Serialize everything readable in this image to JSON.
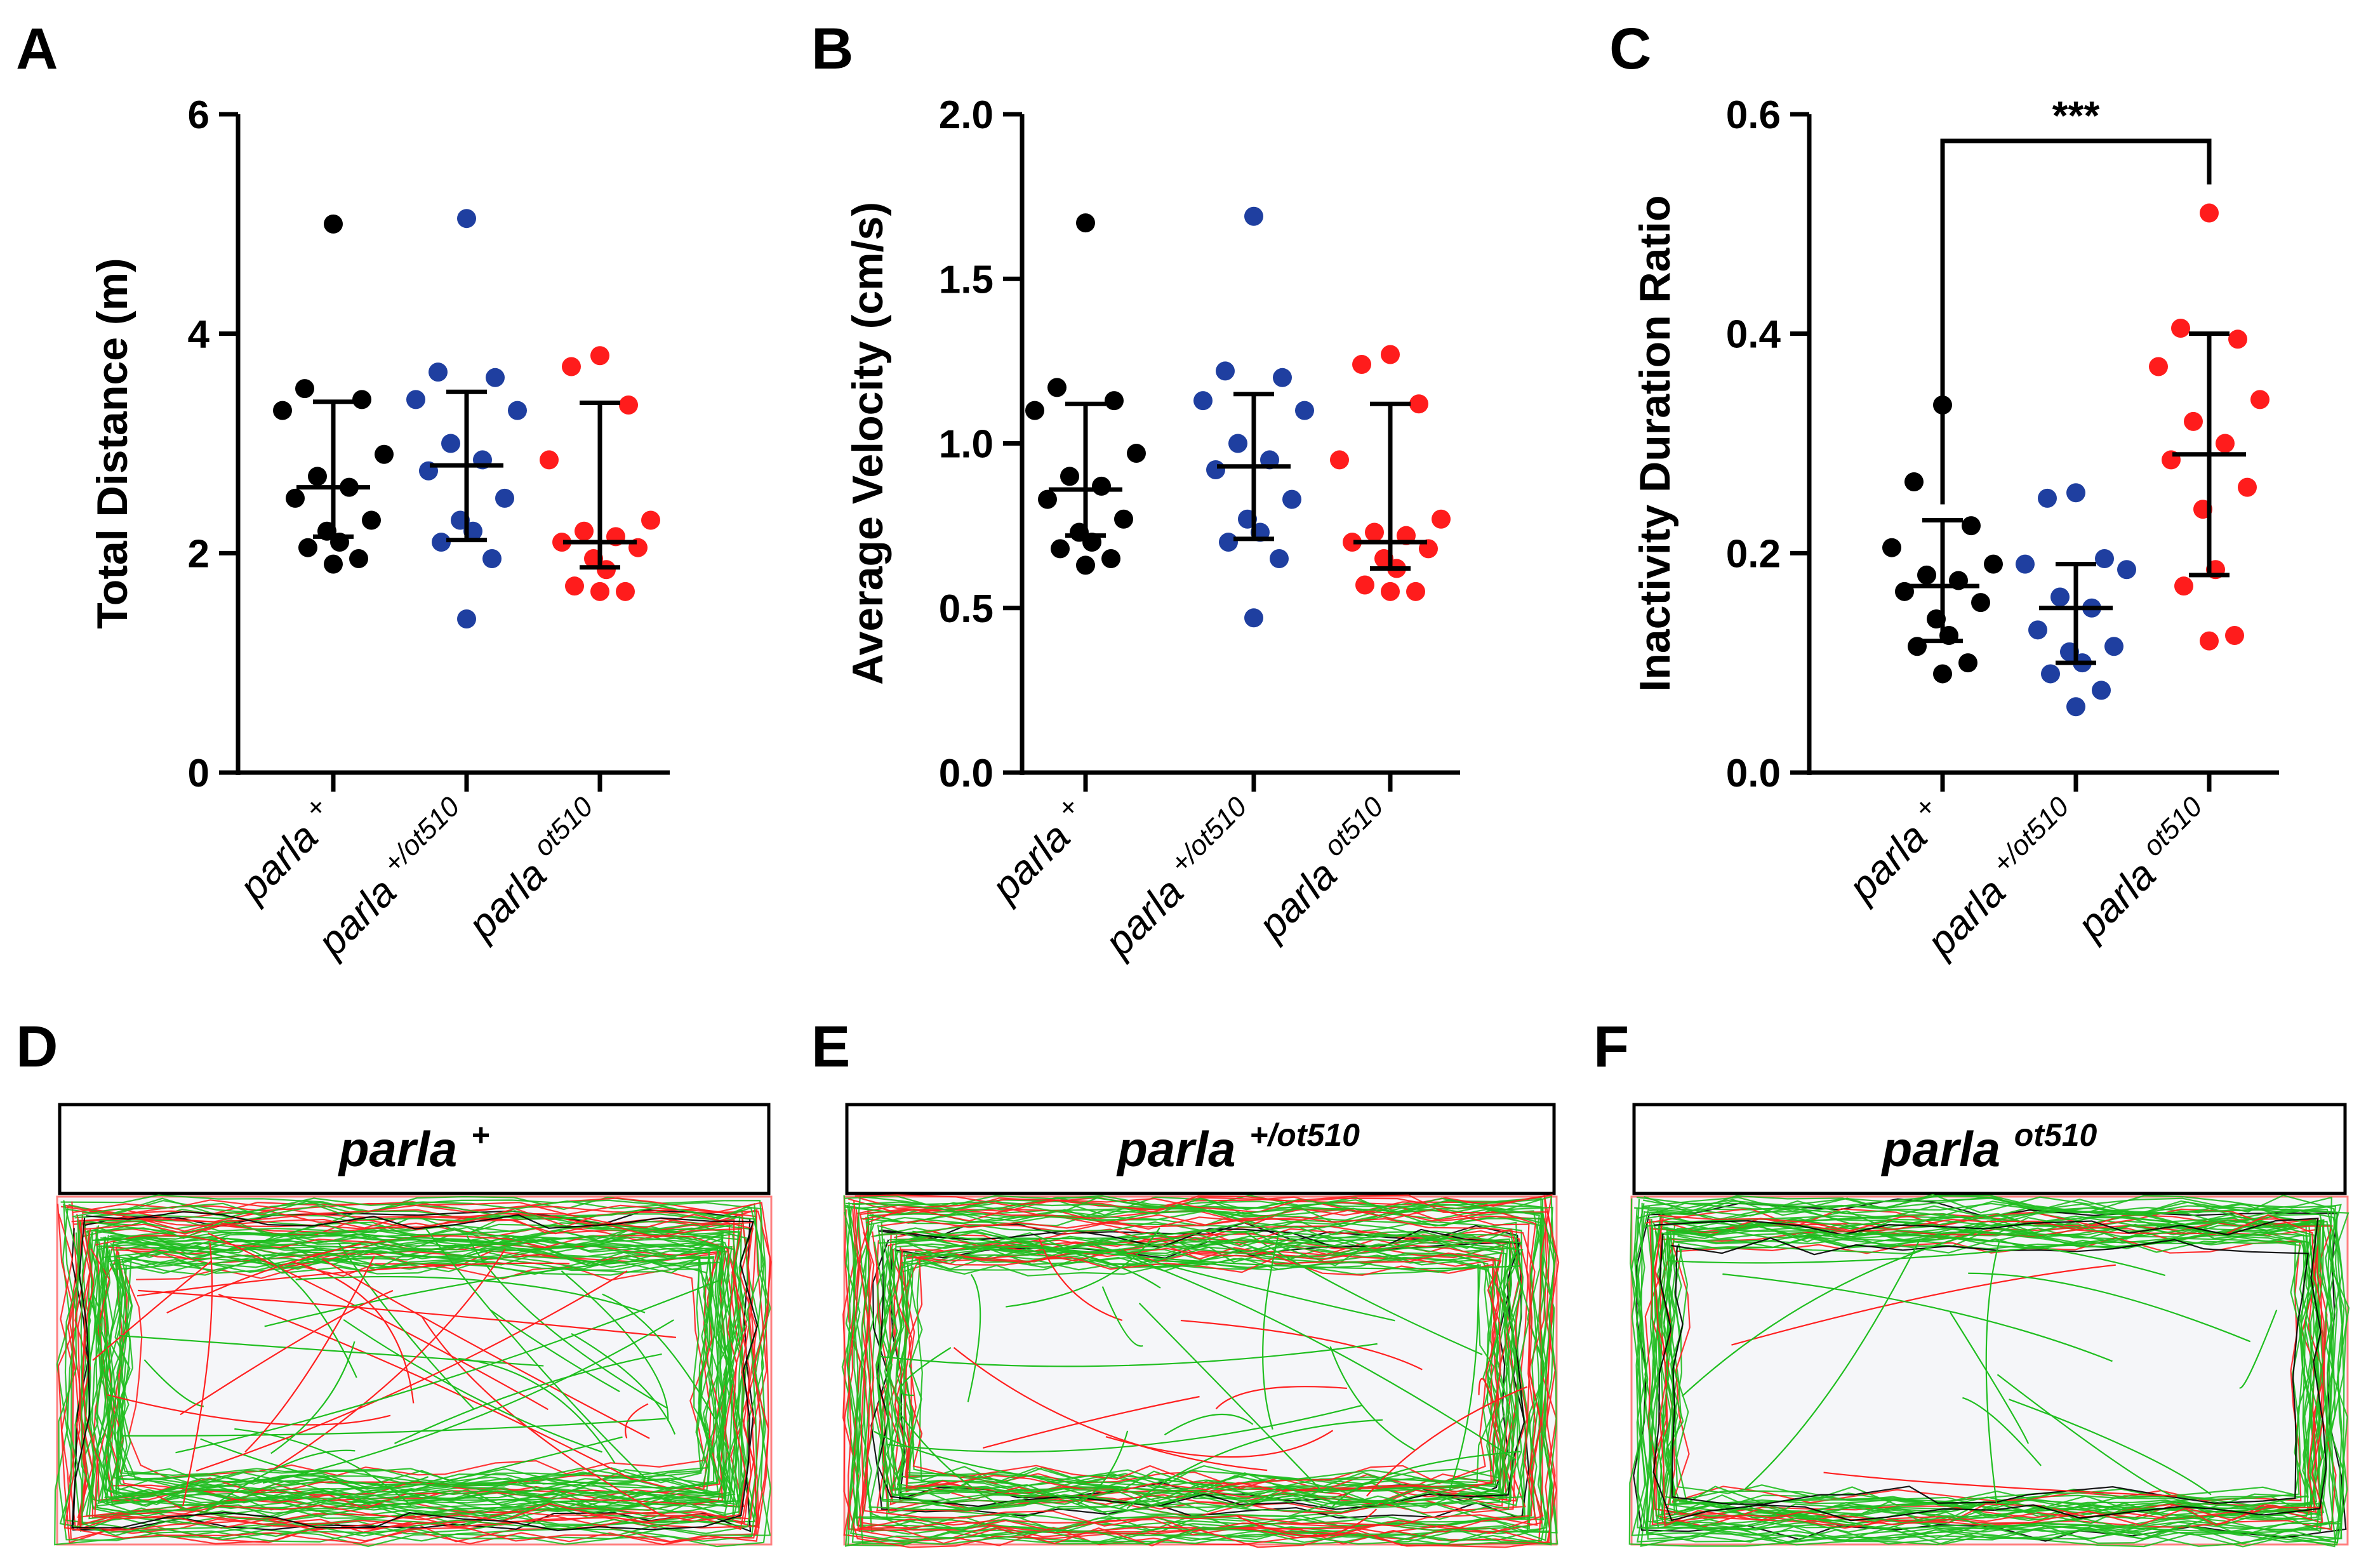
{
  "panel_letters": {
    "a": "A",
    "b": "B",
    "c": "C",
    "d": "D",
    "e": "E",
    "f": "F"
  },
  "chart_data": [
    {
      "type": "scatter",
      "panel": "A",
      "ylabel": "Total Distance (m)",
      "ylim": [
        0,
        6
      ],
      "yticks": [
        0,
        2,
        4,
        6
      ],
      "categories": [
        {
          "base": "parla",
          "sup": "+"
        },
        {
          "base": "parla",
          "sup": "+/ot510"
        },
        {
          "base": "parla",
          "sup": "ot510"
        }
      ],
      "series": [
        {
          "name": "parla +",
          "color": "#000000",
          "median": 2.6,
          "q1": 2.15,
          "q3": 3.38,
          "values": [
            5.0,
            3.5,
            3.4,
            3.3,
            2.9,
            2.7,
            2.6,
            2.5,
            2.3,
            2.2,
            2.1,
            2.05,
            1.95,
            1.9
          ]
        },
        {
          "name": "parla +/ot510",
          "color": "#1f3fa0",
          "median": 2.8,
          "q1": 2.12,
          "q3": 3.47,
          "values": [
            5.05,
            3.65,
            3.6,
            3.4,
            3.3,
            3.0,
            2.85,
            2.75,
            2.5,
            2.3,
            2.2,
            2.1,
            1.95,
            1.4
          ]
        },
        {
          "name": "parla ot510",
          "color": "#ff1c1c",
          "median": 2.1,
          "q1": 1.87,
          "q3": 3.37,
          "values": [
            3.8,
            3.7,
            3.35,
            2.85,
            2.3,
            2.2,
            2.15,
            2.1,
            2.05,
            1.95,
            1.85,
            1.7,
            1.65,
            1.65
          ]
        }
      ]
    },
    {
      "type": "scatter",
      "panel": "B",
      "ylabel": "Average Velocity (cm/s)",
      "ylim": [
        0,
        2
      ],
      "yticks": [
        "0.0",
        "0.5",
        "1.0",
        "1.5",
        "2.0"
      ],
      "categories": [
        {
          "base": "parla",
          "sup": "+"
        },
        {
          "base": "parla",
          "sup": "+/ot510"
        },
        {
          "base": "parla",
          "sup": "ot510"
        }
      ],
      "series": [
        {
          "name": "parla +",
          "color": "#000000",
          "median": 0.86,
          "q1": 0.72,
          "q3": 1.12,
          "values": [
            1.67,
            1.17,
            1.13,
            1.1,
            0.97,
            0.9,
            0.87,
            0.83,
            0.77,
            0.73,
            0.7,
            0.68,
            0.65,
            0.63
          ]
        },
        {
          "name": "parla +/ot510",
          "color": "#1f3fa0",
          "median": 0.93,
          "q1": 0.71,
          "q3": 1.15,
          "values": [
            1.69,
            1.22,
            1.2,
            1.13,
            1.1,
            1.0,
            0.95,
            0.92,
            0.83,
            0.77,
            0.73,
            0.7,
            0.65,
            0.47
          ]
        },
        {
          "name": "parla ot510",
          "color": "#ff1c1c",
          "median": 0.7,
          "q1": 0.62,
          "q3": 1.12,
          "values": [
            1.27,
            1.24,
            1.12,
            0.95,
            0.77,
            0.73,
            0.72,
            0.7,
            0.68,
            0.65,
            0.62,
            0.57,
            0.55,
            0.55
          ]
        }
      ]
    },
    {
      "type": "scatter",
      "panel": "C",
      "ylabel": "Inactivity Duration Ratio",
      "ylim": [
        0,
        0.6
      ],
      "yticks": [
        "0.0",
        "0.2",
        "0.4",
        "0.6"
      ],
      "significance": "***",
      "bracket": [
        0,
        2
      ],
      "categories": [
        {
          "base": "parla",
          "sup": "+"
        },
        {
          "base": "parla",
          "sup": "+/ot510"
        },
        {
          "base": "parla",
          "sup": "ot510"
        }
      ],
      "series": [
        {
          "name": "parla +",
          "color": "#000000",
          "median": 0.17,
          "q1": 0.12,
          "q3": 0.23,
          "values": [
            0.335,
            0.265,
            0.225,
            0.205,
            0.19,
            0.18,
            0.175,
            0.165,
            0.155,
            0.14,
            0.125,
            0.115,
            0.1,
            0.09
          ]
        },
        {
          "name": "parla +/ot510",
          "color": "#1f3fa0",
          "median": 0.15,
          "q1": 0.1,
          "q3": 0.19,
          "values": [
            0.255,
            0.25,
            0.195,
            0.19,
            0.185,
            0.16,
            0.15,
            0.13,
            0.115,
            0.11,
            0.1,
            0.09,
            0.075,
            0.06
          ]
        },
        {
          "name": "parla ot510",
          "color": "#ff1c1c",
          "median": 0.29,
          "q1": 0.18,
          "q3": 0.4,
          "values": [
            0.51,
            0.405,
            0.395,
            0.37,
            0.34,
            0.32,
            0.3,
            0.285,
            0.26,
            0.24,
            0.185,
            0.17,
            0.125,
            0.12
          ]
        }
      ]
    }
  ],
  "tracks": {
    "colors": {
      "moving": "#1fbe1f",
      "fast": "#ff2020",
      "inactive": "#000000",
      "arena_fill": "#f5f6f9",
      "arena_border": "#ff8080"
    },
    "panels": [
      {
        "panel": "D",
        "base": "parla",
        "sup": "+"
      },
      {
        "panel": "E",
        "base": "parla",
        "sup": "+/ot510"
      },
      {
        "panel": "F",
        "base": "parla",
        "sup": "ot510"
      }
    ]
  }
}
